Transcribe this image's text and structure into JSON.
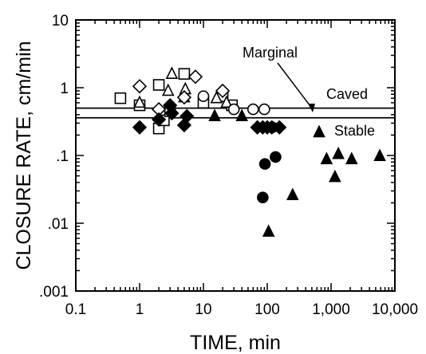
{
  "chart_data": {
    "type": "scatter",
    "xlabel": "TIME, min",
    "ylabel": "CLOSURE RATE, cm/min",
    "xscale": "log",
    "yscale": "log",
    "xlim": [
      0.1,
      10000
    ],
    "ylim": [
      0.001,
      10
    ],
    "x_tick_labels": [
      "0.1",
      "1",
      "10",
      "100",
      "1,000",
      "10,000"
    ],
    "y_tick_labels": [
      ".001",
      ".01",
      ".1",
      "1",
      "10"
    ],
    "grid": false,
    "legend": "none",
    "reference_lines": [
      {
        "y": 0.5,
        "label": "Caved"
      },
      {
        "y": 0.36,
        "label": "Stable"
      }
    ],
    "annotations": [
      {
        "text": "Marginal",
        "points_to_y": 0.42
      },
      {
        "text": "Caved"
      },
      {
        "text": "Stable"
      }
    ],
    "series": [
      {
        "marker": "open-square",
        "points": [
          [
            0.5,
            0.7
          ],
          [
            1.0,
            0.55
          ],
          [
            2.0,
            1.1
          ],
          [
            2.0,
            0.25
          ],
          [
            2.4,
            0.33
          ],
          [
            3.0,
            0.45
          ],
          [
            5.0,
            1.6
          ],
          [
            10.0,
            0.6
          ],
          [
            20.0,
            0.75
          ],
          [
            28.0,
            0.55
          ]
        ]
      },
      {
        "marker": "open-triangle",
        "points": [
          [
            1.0,
            0.6
          ],
          [
            2.8,
            0.9
          ],
          [
            3.2,
            1.6
          ],
          [
            5.0,
            0.72
          ],
          [
            5.2,
            0.95
          ],
          [
            16.0,
            0.7
          ],
          [
            23.0,
            0.6
          ]
        ]
      },
      {
        "marker": "open-diamond",
        "points": [
          [
            1.0,
            1.05
          ],
          [
            2.0,
            0.48
          ],
          [
            5.0,
            0.72
          ],
          [
            7.5,
            1.45
          ],
          [
            20.0,
            0.9
          ]
        ]
      },
      {
        "marker": "open-circle",
        "points": [
          [
            10.0,
            0.75
          ],
          [
            30.0,
            0.48
          ],
          [
            60.0,
            0.48
          ],
          [
            90.0,
            0.48
          ]
        ]
      },
      {
        "marker": "filled-diamond",
        "points": [
          [
            1.0,
            0.26
          ],
          [
            2.0,
            0.34
          ],
          [
            3.0,
            0.55
          ],
          [
            3.2,
            0.42
          ],
          [
            5.0,
            0.28
          ],
          [
            5.5,
            0.38
          ],
          [
            70.0,
            0.26
          ],
          [
            85.0,
            0.26
          ],
          [
            100.0,
            0.26
          ],
          [
            118.0,
            0.26
          ],
          [
            155.0,
            0.26
          ]
        ]
      },
      {
        "marker": "filled-circle",
        "points": [
          [
            85.0,
            0.024
          ],
          [
            92.0,
            0.075
          ],
          [
            135.0,
            0.095
          ],
          [
            120.0,
            0.26
          ]
        ]
      },
      {
        "marker": "filled-triangle",
        "points": [
          [
            15.0,
            0.38
          ],
          [
            40.0,
            0.38
          ],
          [
            105.0,
            0.0075
          ],
          [
            250.0,
            0.026
          ],
          [
            650.0,
            0.22
          ],
          [
            850.0,
            0.088
          ],
          [
            1150.0,
            0.048
          ],
          [
            1300.0,
            0.105
          ],
          [
            2100.0,
            0.088
          ],
          [
            5800.0,
            0.098
          ]
        ]
      }
    ]
  }
}
